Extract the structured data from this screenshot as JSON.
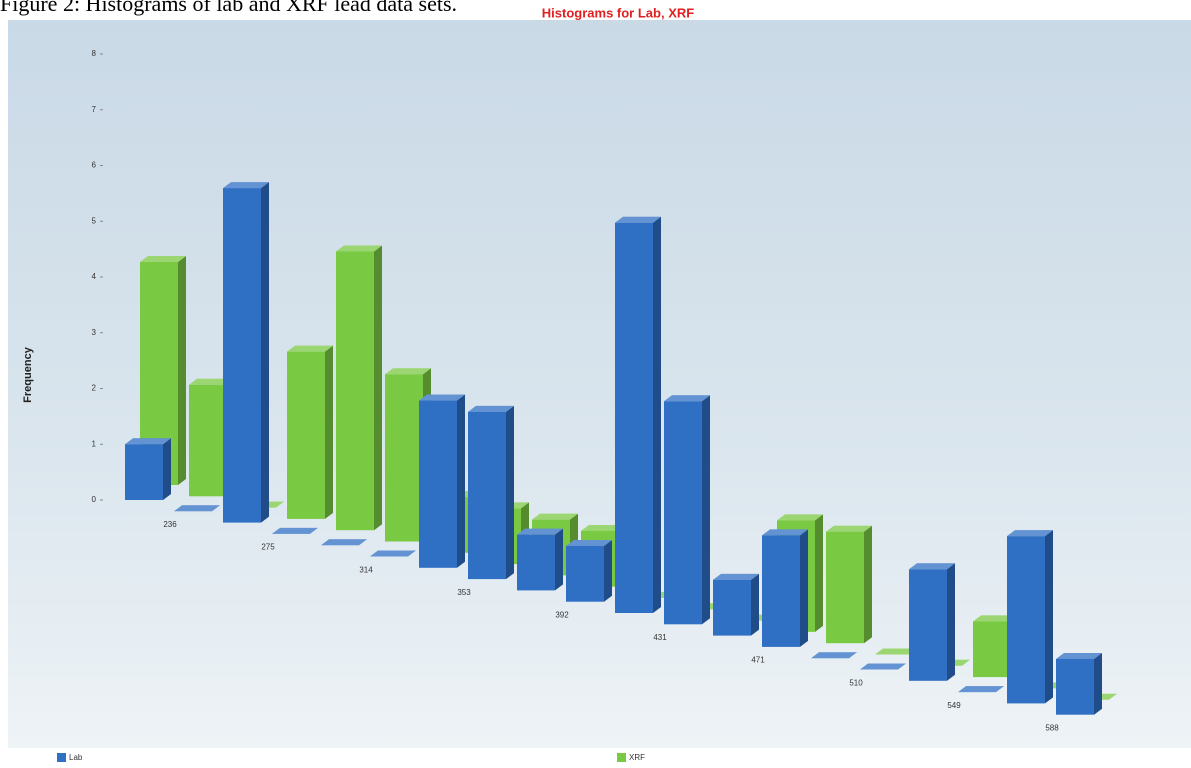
{
  "caption": "Figure 2:  Histograms of lab and XRF lead data sets.",
  "chart_data": {
    "type": "bar3d",
    "title": "Histograms for Lab, XRF",
    "y_label": "Frequency",
    "categories": [
      "236",
      null,
      "275",
      null,
      "314",
      null,
      "353",
      null,
      "392",
      null,
      "431",
      null,
      "471",
      null,
      "510",
      null,
      "549",
      null,
      "588",
      null
    ],
    "series": [
      {
        "name": "XRF",
        "color": "#7ac943",
        "values": [
          4,
          2,
          0,
          3,
          5,
          3,
          1,
          1,
          1,
          1,
          0,
          0,
          0,
          2,
          2,
          0,
          0,
          1,
          0,
          0
        ]
      },
      {
        "name": "Lab",
        "color": "#2f6fc4",
        "values": [
          1,
          0,
          6,
          0,
          0,
          0,
          3,
          3,
          1,
          1,
          7,
          4,
          1,
          2,
          0,
          0,
          2,
          0,
          3,
          1
        ]
      }
    ],
    "ylim": [
      0,
      8
    ],
    "yticks": [
      0,
      1,
      2,
      3,
      4,
      5,
      6,
      7,
      8
    ]
  }
}
